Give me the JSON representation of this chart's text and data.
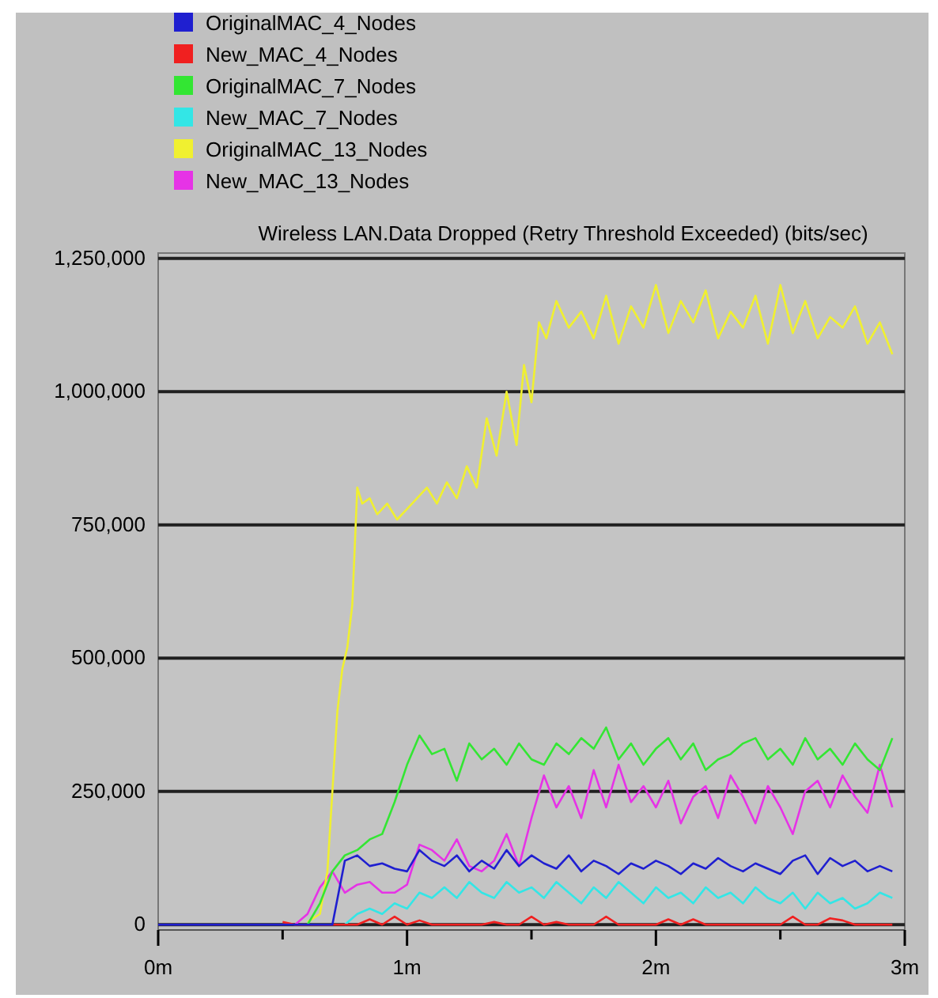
{
  "chart_data": {
    "type": "line",
    "title": "Wireless LAN.Data Dropped (Retry Threshold Exceeded) (bits/sec)",
    "x": [
      0,
      0.05,
      0.1,
      0.15,
      0.2,
      0.25,
      0.3,
      0.35,
      0.4,
      0.45,
      0.5,
      0.55,
      0.6,
      0.65,
      0.7,
      0.75,
      0.8,
      0.85,
      0.9,
      0.95,
      1,
      1.05,
      1.1,
      1.15,
      1.2,
      1.25,
      1.3,
      1.35,
      1.4,
      1.45,
      1.5,
      1.55,
      1.6,
      1.65,
      1.7,
      1.75,
      1.8,
      1.85,
      1.9,
      1.95,
      2,
      2.05,
      2.1,
      2.15,
      2.2,
      2.25,
      2.3,
      2.35,
      2.4,
      2.45,
      2.5,
      2.55,
      2.6,
      2.65,
      2.7,
      2.75,
      2.8,
      2.85,
      2.9,
      2.95
    ],
    "series": [
      {
        "name": "OriginalMAC_4_Nodes",
        "color": "#1f1fd0",
        "values": [
          0,
          0,
          0,
          0,
          0,
          0,
          0,
          0,
          0,
          0,
          0,
          0,
          0,
          0,
          0,
          120000,
          130000,
          110000,
          115000,
          105000,
          100000,
          140000,
          120000,
          110000,
          130000,
          100000,
          120000,
          105000,
          140000,
          110000,
          130000,
          115000,
          105000,
          130000,
          100000,
          120000,
          110000,
          95000,
          115000,
          105000,
          120000,
          110000,
          95000,
          115000,
          105000,
          125000,
          110000,
          100000,
          115000,
          105000,
          95000,
          120000,
          130000,
          95000,
          125000,
          110000,
          120000,
          100000,
          110000,
          100000
        ]
      },
      {
        "name": "New_MAC_4_Nodes",
        "color": "#f02020",
        "values": [
          null,
          null,
          null,
          null,
          null,
          null,
          null,
          null,
          null,
          null,
          5000,
          0,
          0,
          0,
          0,
          0,
          0,
          10000,
          0,
          15000,
          0,
          8000,
          0,
          0,
          0,
          0,
          0,
          5000,
          0,
          0,
          15000,
          0,
          5000,
          0,
          0,
          0,
          15000,
          0,
          0,
          0,
          0,
          10000,
          0,
          10000,
          0,
          0,
          0,
          0,
          0,
          0,
          0,
          15000,
          0,
          0,
          12000,
          8000,
          0,
          0,
          0,
          0
        ]
      },
      {
        "name": "OriginalMAC_7_Nodes",
        "color": "#33e633",
        "values": [
          null,
          null,
          null,
          null,
          null,
          null,
          null,
          null,
          null,
          null,
          null,
          null,
          0,
          40000,
          100000,
          130000,
          140000,
          160000,
          170000,
          230000,
          300000,
          355000,
          320000,
          330000,
          270000,
          340000,
          310000,
          330000,
          300000,
          340000,
          310000,
          300000,
          340000,
          320000,
          350000,
          330000,
          370000,
          310000,
          340000,
          300000,
          330000,
          350000,
          310000,
          340000,
          290000,
          310000,
          320000,
          340000,
          350000,
          310000,
          330000,
          300000,
          350000,
          310000,
          330000,
          300000,
          340000,
          310000,
          290000,
          350000
        ]
      },
      {
        "name": "New_MAC_7_Nodes",
        "color": "#33e6e6",
        "values": [
          null,
          null,
          null,
          null,
          null,
          null,
          null,
          null,
          null,
          null,
          null,
          null,
          null,
          null,
          null,
          0,
          20000,
          30000,
          20000,
          40000,
          30000,
          60000,
          50000,
          70000,
          50000,
          80000,
          60000,
          50000,
          80000,
          60000,
          70000,
          50000,
          80000,
          60000,
          40000,
          70000,
          50000,
          80000,
          60000,
          40000,
          70000,
          50000,
          60000,
          40000,
          70000,
          50000,
          60000,
          40000,
          70000,
          50000,
          40000,
          60000,
          30000,
          60000,
          40000,
          50000,
          30000,
          40000,
          60000,
          50000
        ]
      },
      {
        "name": "OriginalMAC_13_Nodes",
        "color": "#f0f030",
        "x": [
          0.6,
          0.65,
          0.68,
          0.7,
          0.72,
          0.74,
          0.76,
          0.78,
          0.8,
          0.82,
          0.85,
          0.88,
          0.92,
          0.96,
          1,
          1.04,
          1.08,
          1.12,
          1.16,
          1.2,
          1.24,
          1.28,
          1.32,
          1.36,
          1.4,
          1.44,
          1.47,
          1.5,
          1.53,
          1.56,
          1.6,
          1.65,
          1.7,
          1.75,
          1.8,
          1.85,
          1.9,
          1.95,
          2,
          2.05,
          2.1,
          2.15,
          2.2,
          2.25,
          2.3,
          2.35,
          2.4,
          2.45,
          2.5,
          2.55,
          2.6,
          2.65,
          2.7,
          2.75,
          2.8,
          2.85,
          2.9,
          2.95
        ],
        "values": [
          5000,
          20000,
          100000,
          250000,
          400000,
          480000,
          520000,
          600000,
          820000,
          790000,
          800000,
          770000,
          790000,
          760000,
          780000,
          800000,
          820000,
          790000,
          830000,
          800000,
          860000,
          820000,
          950000,
          880000,
          1000000,
          900000,
          1050000,
          980000,
          1130000,
          1100000,
          1170000,
          1120000,
          1150000,
          1100000,
          1180000,
          1090000,
          1160000,
          1120000,
          1200000,
          1110000,
          1170000,
          1130000,
          1190000,
          1100000,
          1150000,
          1120000,
          1180000,
          1090000,
          1200000,
          1110000,
          1170000,
          1100000,
          1140000,
          1120000,
          1160000,
          1090000,
          1130000,
          1070000
        ]
      },
      {
        "name": "New_MAC_13_Nodes",
        "color": "#e633e6",
        "values": [
          null,
          null,
          null,
          null,
          null,
          null,
          null,
          null,
          null,
          null,
          null,
          0,
          20000,
          70000,
          100000,
          60000,
          75000,
          80000,
          60000,
          60000,
          75000,
          150000,
          140000,
          120000,
          160000,
          110000,
          100000,
          120000,
          170000,
          110000,
          200000,
          280000,
          220000,
          260000,
          200000,
          290000,
          220000,
          300000,
          230000,
          260000,
          220000,
          270000,
          190000,
          240000,
          260000,
          200000,
          280000,
          240000,
          190000,
          260000,
          220000,
          170000,
          250000,
          270000,
          220000,
          280000,
          240000,
          210000,
          300000,
          220000
        ]
      }
    ],
    "xlim": [
      0,
      3
    ],
    "xticks": [
      {
        "value": 0,
        "label": "0m"
      },
      {
        "value": 0.5,
        "label": null
      },
      {
        "value": 1,
        "label": "1m"
      },
      {
        "value": 1.5,
        "label": null
      },
      {
        "value": 2,
        "label": "2m"
      },
      {
        "value": 2.5,
        "label": null
      },
      {
        "value": 3,
        "label": "3m"
      }
    ],
    "ylim": [
      -10000,
      1260000
    ],
    "yticks": [
      0,
      {
        "value": 250000,
        "label": "250,000"
      },
      {
        "value": 500000,
        "label": "500,000"
      },
      {
        "value": 750000,
        "label": "750,000"
      },
      {
        "value": 1000000,
        "label": "1,000,000"
      },
      {
        "value": 1250000,
        "label": "1,250,000"
      }
    ],
    "grid": "y",
    "legend": "top left",
    "marker": "none",
    "line_style": "solid"
  }
}
